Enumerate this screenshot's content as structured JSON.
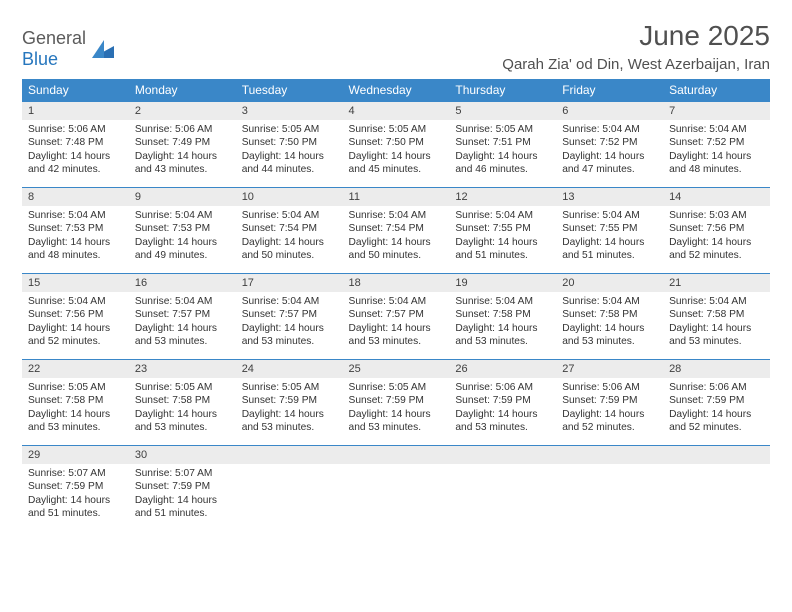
{
  "brand": {
    "word1": "General",
    "word2": "Blue"
  },
  "colors": {
    "header_bg": "#3a87c8",
    "daynum_bg": "#ececec",
    "text": "#323232"
  },
  "header": {
    "month_title": "June 2025",
    "location": "Qarah Zia' od Din, West Azerbaijan, Iran"
  },
  "weekdays": [
    "Sunday",
    "Monday",
    "Tuesday",
    "Wednesday",
    "Thursday",
    "Friday",
    "Saturday"
  ],
  "weeks": [
    [
      {
        "day": "1",
        "sunrise": "Sunrise: 5:06 AM",
        "sunset": "Sunset: 7:48 PM",
        "daylight": "Daylight: 14 hours and 42 minutes."
      },
      {
        "day": "2",
        "sunrise": "Sunrise: 5:06 AM",
        "sunset": "Sunset: 7:49 PM",
        "daylight": "Daylight: 14 hours and 43 minutes."
      },
      {
        "day": "3",
        "sunrise": "Sunrise: 5:05 AM",
        "sunset": "Sunset: 7:50 PM",
        "daylight": "Daylight: 14 hours and 44 minutes."
      },
      {
        "day": "4",
        "sunrise": "Sunrise: 5:05 AM",
        "sunset": "Sunset: 7:50 PM",
        "daylight": "Daylight: 14 hours and 45 minutes."
      },
      {
        "day": "5",
        "sunrise": "Sunrise: 5:05 AM",
        "sunset": "Sunset: 7:51 PM",
        "daylight": "Daylight: 14 hours and 46 minutes."
      },
      {
        "day": "6",
        "sunrise": "Sunrise: 5:04 AM",
        "sunset": "Sunset: 7:52 PM",
        "daylight": "Daylight: 14 hours and 47 minutes."
      },
      {
        "day": "7",
        "sunrise": "Sunrise: 5:04 AM",
        "sunset": "Sunset: 7:52 PM",
        "daylight": "Daylight: 14 hours and 48 minutes."
      }
    ],
    [
      {
        "day": "8",
        "sunrise": "Sunrise: 5:04 AM",
        "sunset": "Sunset: 7:53 PM",
        "daylight": "Daylight: 14 hours and 48 minutes."
      },
      {
        "day": "9",
        "sunrise": "Sunrise: 5:04 AM",
        "sunset": "Sunset: 7:53 PM",
        "daylight": "Daylight: 14 hours and 49 minutes."
      },
      {
        "day": "10",
        "sunrise": "Sunrise: 5:04 AM",
        "sunset": "Sunset: 7:54 PM",
        "daylight": "Daylight: 14 hours and 50 minutes."
      },
      {
        "day": "11",
        "sunrise": "Sunrise: 5:04 AM",
        "sunset": "Sunset: 7:54 PM",
        "daylight": "Daylight: 14 hours and 50 minutes."
      },
      {
        "day": "12",
        "sunrise": "Sunrise: 5:04 AM",
        "sunset": "Sunset: 7:55 PM",
        "daylight": "Daylight: 14 hours and 51 minutes."
      },
      {
        "day": "13",
        "sunrise": "Sunrise: 5:04 AM",
        "sunset": "Sunset: 7:55 PM",
        "daylight": "Daylight: 14 hours and 51 minutes."
      },
      {
        "day": "14",
        "sunrise": "Sunrise: 5:03 AM",
        "sunset": "Sunset: 7:56 PM",
        "daylight": "Daylight: 14 hours and 52 minutes."
      }
    ],
    [
      {
        "day": "15",
        "sunrise": "Sunrise: 5:04 AM",
        "sunset": "Sunset: 7:56 PM",
        "daylight": "Daylight: 14 hours and 52 minutes."
      },
      {
        "day": "16",
        "sunrise": "Sunrise: 5:04 AM",
        "sunset": "Sunset: 7:57 PM",
        "daylight": "Daylight: 14 hours and 53 minutes."
      },
      {
        "day": "17",
        "sunrise": "Sunrise: 5:04 AM",
        "sunset": "Sunset: 7:57 PM",
        "daylight": "Daylight: 14 hours and 53 minutes."
      },
      {
        "day": "18",
        "sunrise": "Sunrise: 5:04 AM",
        "sunset": "Sunset: 7:57 PM",
        "daylight": "Daylight: 14 hours and 53 minutes."
      },
      {
        "day": "19",
        "sunrise": "Sunrise: 5:04 AM",
        "sunset": "Sunset: 7:58 PM",
        "daylight": "Daylight: 14 hours and 53 minutes."
      },
      {
        "day": "20",
        "sunrise": "Sunrise: 5:04 AM",
        "sunset": "Sunset: 7:58 PM",
        "daylight": "Daylight: 14 hours and 53 minutes."
      },
      {
        "day": "21",
        "sunrise": "Sunrise: 5:04 AM",
        "sunset": "Sunset: 7:58 PM",
        "daylight": "Daylight: 14 hours and 53 minutes."
      }
    ],
    [
      {
        "day": "22",
        "sunrise": "Sunrise: 5:05 AM",
        "sunset": "Sunset: 7:58 PM",
        "daylight": "Daylight: 14 hours and 53 minutes."
      },
      {
        "day": "23",
        "sunrise": "Sunrise: 5:05 AM",
        "sunset": "Sunset: 7:58 PM",
        "daylight": "Daylight: 14 hours and 53 minutes."
      },
      {
        "day": "24",
        "sunrise": "Sunrise: 5:05 AM",
        "sunset": "Sunset: 7:59 PM",
        "daylight": "Daylight: 14 hours and 53 minutes."
      },
      {
        "day": "25",
        "sunrise": "Sunrise: 5:05 AM",
        "sunset": "Sunset: 7:59 PM",
        "daylight": "Daylight: 14 hours and 53 minutes."
      },
      {
        "day": "26",
        "sunrise": "Sunrise: 5:06 AM",
        "sunset": "Sunset: 7:59 PM",
        "daylight": "Daylight: 14 hours and 53 minutes."
      },
      {
        "day": "27",
        "sunrise": "Sunrise: 5:06 AM",
        "sunset": "Sunset: 7:59 PM",
        "daylight": "Daylight: 14 hours and 52 minutes."
      },
      {
        "day": "28",
        "sunrise": "Sunrise: 5:06 AM",
        "sunset": "Sunset: 7:59 PM",
        "daylight": "Daylight: 14 hours and 52 minutes."
      }
    ],
    [
      {
        "day": "29",
        "sunrise": "Sunrise: 5:07 AM",
        "sunset": "Sunset: 7:59 PM",
        "daylight": "Daylight: 14 hours and 51 minutes."
      },
      {
        "day": "30",
        "sunrise": "Sunrise: 5:07 AM",
        "sunset": "Sunset: 7:59 PM",
        "daylight": "Daylight: 14 hours and 51 minutes."
      },
      {
        "empty": true
      },
      {
        "empty": true
      },
      {
        "empty": true
      },
      {
        "empty": true
      },
      {
        "empty": true
      }
    ]
  ]
}
